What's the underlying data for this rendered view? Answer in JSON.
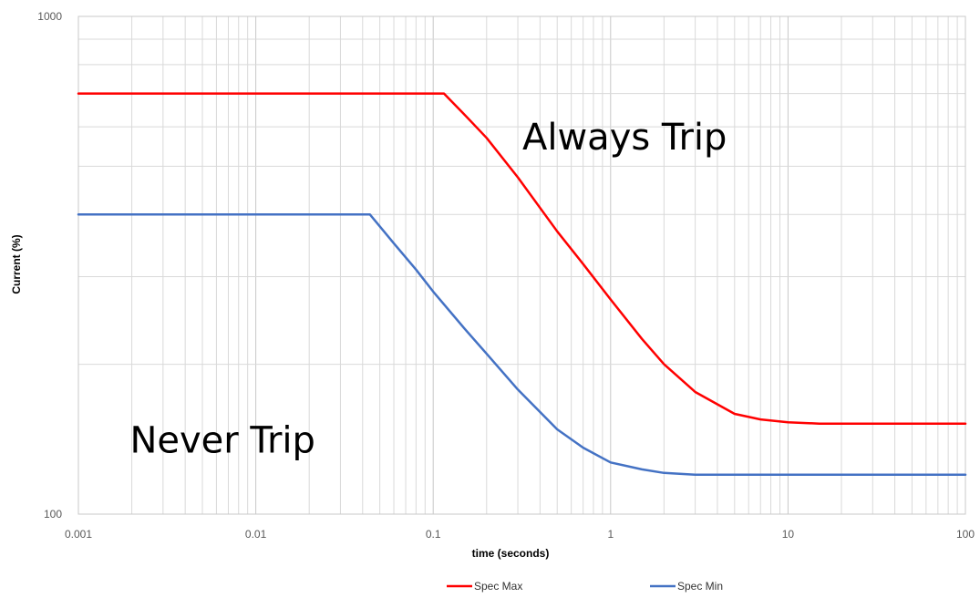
{
  "chart_data": {
    "type": "line",
    "title": "",
    "xlabel": "time (seconds)",
    "ylabel": "Current (%)",
    "xscale": "log",
    "yscale": "log",
    "xlim": [
      0.001,
      100
    ],
    "ylim": [
      100,
      1000
    ],
    "grid": true,
    "legend_position": "bottom",
    "x_ticks": [
      {
        "value": 0.001,
        "label": "0.001"
      },
      {
        "value": 0.01,
        "label": "0.01"
      },
      {
        "value": 0.1,
        "label": "0.1"
      },
      {
        "value": 1,
        "label": "1"
      },
      {
        "value": 10,
        "label": "10"
      },
      {
        "value": 100,
        "label": "100"
      }
    ],
    "y_ticks": [
      {
        "value": 100,
        "label": "100"
      },
      {
        "value": 1000,
        "label": "1000"
      }
    ],
    "series": [
      {
        "name": "Spec Max",
        "color": "#ff0000",
        "x": [
          0.001,
          0.01,
          0.05,
          0.115,
          0.15,
          0.2,
          0.3,
          0.5,
          0.7,
          1,
          1.5,
          2,
          3,
          5,
          7,
          10,
          15,
          20,
          30,
          50,
          100
        ],
        "y": [
          700,
          700,
          700,
          700,
          635,
          570,
          475,
          370,
          318,
          270,
          225,
          200,
          176,
          159,
          155,
          153,
          152,
          152,
          152,
          152,
          152
        ]
      },
      {
        "name": "Spec Min",
        "color": "#4472c4",
        "x": [
          0.001,
          0.01,
          0.03,
          0.044,
          0.06,
          0.08,
          0.1,
          0.15,
          0.2,
          0.3,
          0.5,
          0.7,
          1,
          1.5,
          2,
          3,
          5,
          10,
          30,
          100
        ],
        "y": [
          400,
          400,
          400,
          400,
          350,
          310,
          280,
          236,
          210,
          178,
          148,
          136,
          127,
          123,
          121,
          120,
          120,
          120,
          120,
          120
        ]
      }
    ],
    "annotations": [
      {
        "text": "Always Trip",
        "x": 1.2,
        "y": 540
      },
      {
        "text": "Never Trip",
        "x": 0.0065,
        "y": 133
      }
    ]
  }
}
